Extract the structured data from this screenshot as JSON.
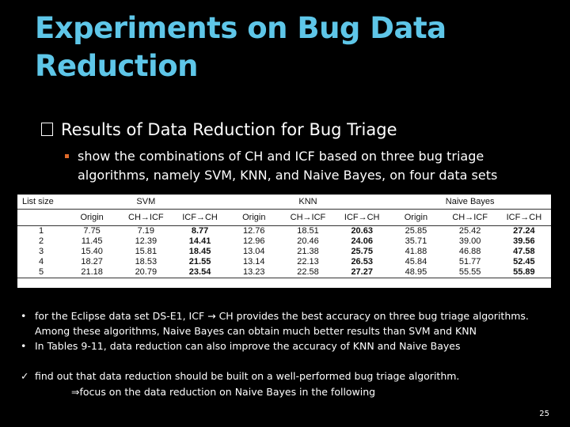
{
  "slide": {
    "title_line1": "Experiments on Bug Data",
    "title_line2": "Reduction",
    "heading": "Results of Data Reduction for Bug Triage",
    "sub_bullet": "show the combinations of CH and ICF based on three bug triage algorithms, namely SVM, KNN, and Naive Bayes, on four data sets",
    "bullets": [
      "for the Eclipse data set DS-E1, ICF → CH provides the best accuracy on three bug triage algorithms. Among these algorithms, Naive Bayes can obtain much better results than SVM and KNN",
      "In Tables 9-11, data reduction can also improve the accuracy of KNN and Naive Bayes"
    ],
    "check_line1": "find out that data reduction should be built on a well-performed bug triage algorithm.",
    "check_line2": "⇒focus on the data reduction on Naive Bayes in the following",
    "page_number": "25"
  },
  "table": {
    "list_size_header": "List size",
    "groups": [
      "SVM",
      "KNN",
      "Naive Bayes"
    ],
    "sub_columns": [
      "Origin",
      "CH→ICF",
      "ICF→CH"
    ],
    "rows": [
      {
        "size": "1",
        "values": [
          "7.75",
          "7.19",
          "8.77",
          "12.76",
          "18.51",
          "20.63",
          "25.85",
          "25.42",
          "27.24"
        ]
      },
      {
        "size": "2",
        "values": [
          "11.45",
          "12.39",
          "14.41",
          "12.96",
          "20.46",
          "24.06",
          "35.71",
          "39.00",
          "39.56"
        ]
      },
      {
        "size": "3",
        "values": [
          "15.40",
          "15.81",
          "18.45",
          "13.04",
          "21.38",
          "25.75",
          "41.88",
          "46.88",
          "47.58"
        ]
      },
      {
        "size": "4",
        "values": [
          "18.27",
          "18.53",
          "21.55",
          "13.14",
          "22.13",
          "26.53",
          "45.84",
          "51.77",
          "52.45"
        ]
      },
      {
        "size": "5",
        "values": [
          "21.18",
          "20.79",
          "23.54",
          "13.23",
          "22.58",
          "27.27",
          "48.95",
          "55.55",
          "55.89"
        ]
      }
    ]
  }
}
